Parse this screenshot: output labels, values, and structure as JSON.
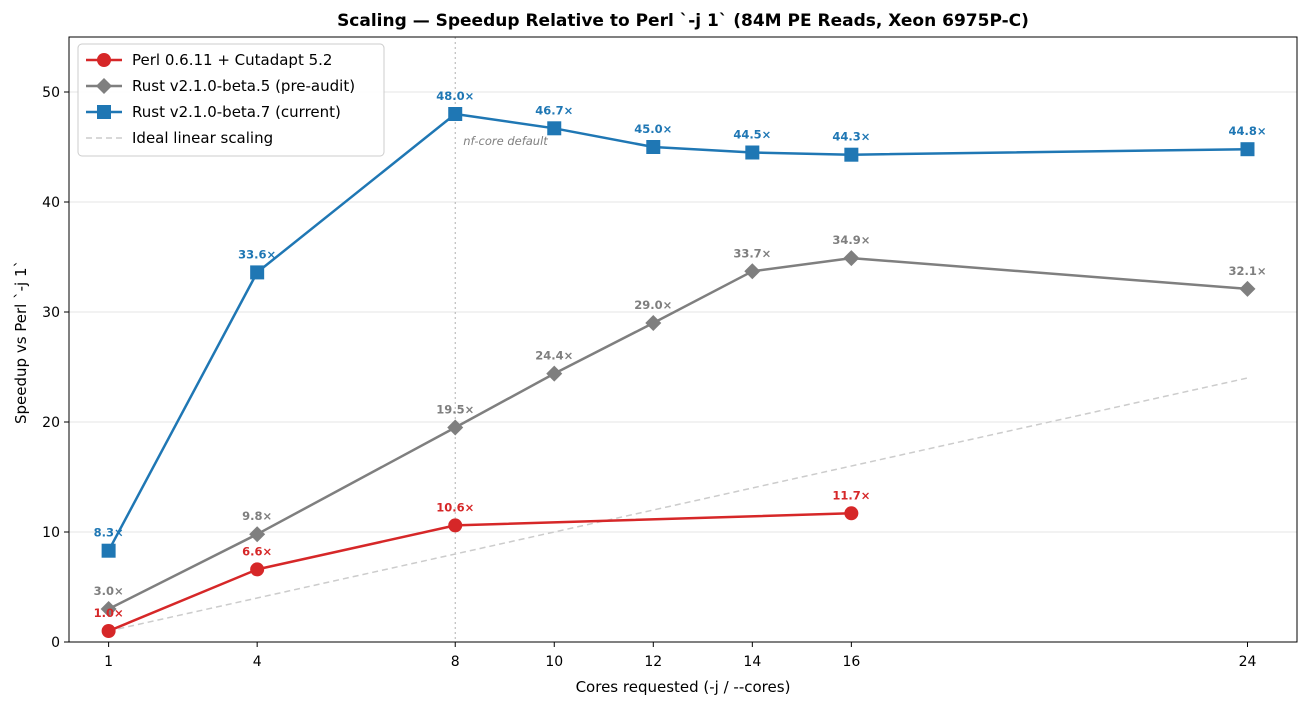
{
  "chart_data": {
    "type": "line",
    "title": "Scaling — Speedup Relative to Perl `-j 1` (84M PE Reads, Xeon 6975P-C)",
    "xlabel": "Cores requested  (-j  /  --cores)",
    "ylabel": "Speedup vs Perl `-j 1`",
    "xlim": [
      0.2,
      25.0
    ],
    "ylim": [
      0,
      55
    ],
    "xticks": [
      1,
      4,
      8,
      10,
      12,
      14,
      16,
      24
    ],
    "yticks": [
      0,
      10,
      20,
      30,
      40,
      50
    ],
    "grid": "horizontal",
    "legend_position": "top-left",
    "series": [
      {
        "name": "Perl 0.6.11 + Cutadapt 5.2",
        "color": "#d62728",
        "marker": "circle",
        "x": [
          1,
          4,
          8,
          16
        ],
        "y": [
          1.0,
          6.6,
          10.6,
          11.7
        ],
        "labels": [
          "1.0×",
          "6.6×",
          "10.6×",
          "11.7×"
        ]
      },
      {
        "name": "Rust v2.1.0-beta.5 (pre-audit)",
        "color": "#7f7f7f",
        "marker": "diamond",
        "x": [
          1,
          4,
          8,
          10,
          12,
          14,
          16,
          24
        ],
        "y": [
          3.0,
          9.8,
          19.5,
          24.4,
          29.0,
          33.7,
          34.9,
          32.1
        ],
        "labels": [
          "3.0×",
          "9.8×",
          "19.5×",
          "24.4×",
          "29.0×",
          "33.7×",
          "34.9×",
          "32.1×"
        ]
      },
      {
        "name": "Rust v2.1.0-beta.7 (current)",
        "color": "#1f77b4",
        "marker": "square",
        "x": [
          1,
          4,
          8,
          10,
          12,
          14,
          16,
          24
        ],
        "y": [
          8.3,
          33.6,
          48.0,
          46.7,
          45.0,
          44.5,
          44.3,
          44.8
        ],
        "labels": [
          "8.3×",
          "33.6×",
          "48.0×",
          "46.7×",
          "45.0×",
          "44.5×",
          "44.3×",
          "44.8×"
        ]
      },
      {
        "name": "Ideal linear scaling",
        "color": "#cccccc",
        "marker": "none",
        "dashed": true,
        "x": [
          1,
          24
        ],
        "y": [
          1,
          24
        ]
      }
    ],
    "annotations": [
      {
        "text": "nf-core default",
        "x": 8
      }
    ]
  }
}
